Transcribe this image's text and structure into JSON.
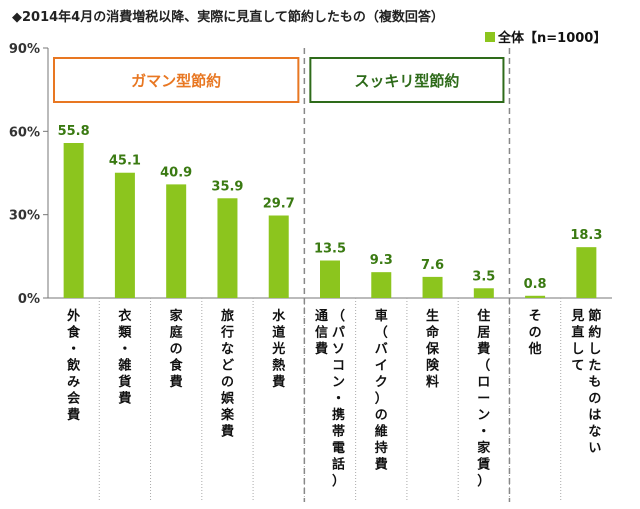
{
  "chart_data": {
    "type": "bar",
    "title": "◆2014年4月の消費増税以降、実際に見直して節約したもの（複数回答）",
    "categories": [
      "外食・飲み会費",
      "衣類・雑貨費",
      "家庭の食費",
      "旅行などの娯楽費",
      "水道光熱費",
      "通信費（パソコン・携帯電話）",
      "車（バイク）の維持費",
      "生命保険料",
      "住居費（ローン・家賃）",
      "その他",
      "見直して節約したものはない"
    ],
    "category_columns": [
      [
        [
          "外",
          "食",
          "・",
          "飲",
          "み",
          "会",
          "費"
        ]
      ],
      [
        [
          "衣",
          "類",
          "・",
          "雑",
          "貨",
          "費"
        ]
      ],
      [
        [
          "家",
          "庭",
          "の",
          "食",
          "費"
        ]
      ],
      [
        [
          "旅",
          "行",
          "な",
          "ど",
          "の",
          "娯",
          "楽",
          "費"
        ]
      ],
      [
        [
          "水",
          "道",
          "光",
          "熱",
          "費"
        ]
      ],
      [
        [
          "通",
          "信",
          "費"
        ],
        [
          "（",
          "パ",
          "ソ",
          "コ",
          "ン",
          "・",
          "携",
          "帯",
          "電",
          "話",
          "）"
        ]
      ],
      [
        [
          "車",
          "（",
          "バ",
          "イ",
          "ク",
          "）",
          "の",
          "維",
          "持",
          "費"
        ]
      ],
      [
        [
          "生",
          "命",
          "保",
          "険",
          "料"
        ]
      ],
      [
        [
          "住",
          "居",
          "費",
          "（",
          "ロ",
          "ー",
          "ン",
          "・",
          "家",
          "賃",
          "）"
        ]
      ],
      [
        [
          "そ",
          "の",
          "他"
        ]
      ],
      [
        [
          "見",
          "直",
          "し",
          "て"
        ],
        [
          "節",
          "約",
          "し",
          "た",
          "も",
          "の",
          "は",
          "な",
          "い"
        ]
      ]
    ],
    "series": [
      {
        "name": "全体【n=1000】",
        "values": [
          55.8,
          45.1,
          40.9,
          35.9,
          29.7,
          13.5,
          9.3,
          7.6,
          3.5,
          0.8,
          18.3
        ]
      }
    ],
    "value_labels": [
      "55.8",
      "45.1",
      "40.9",
      "35.9",
      "29.7",
      "13.5",
      "9.3",
      "7.6",
      "3.5",
      "0.8",
      "18.3"
    ],
    "ylim": [
      0,
      90
    ],
    "yticks": [
      0,
      30,
      60,
      90
    ],
    "ytick_labels": [
      "0%",
      "30%",
      "60%",
      "90%"
    ],
    "xlabel": "",
    "ylabel": "",
    "legend_position": "top-right",
    "groups": [
      {
        "label": "ガマン型節約",
        "start": 0,
        "end": 4,
        "color": "#e87722"
      },
      {
        "label": "スッキリ型節約",
        "start": 5,
        "end": 8,
        "color": "#2e6b1a"
      }
    ],
    "bar_color": "#8cc51e",
    "value_label_color": "#3a7a12",
    "grid": false
  }
}
